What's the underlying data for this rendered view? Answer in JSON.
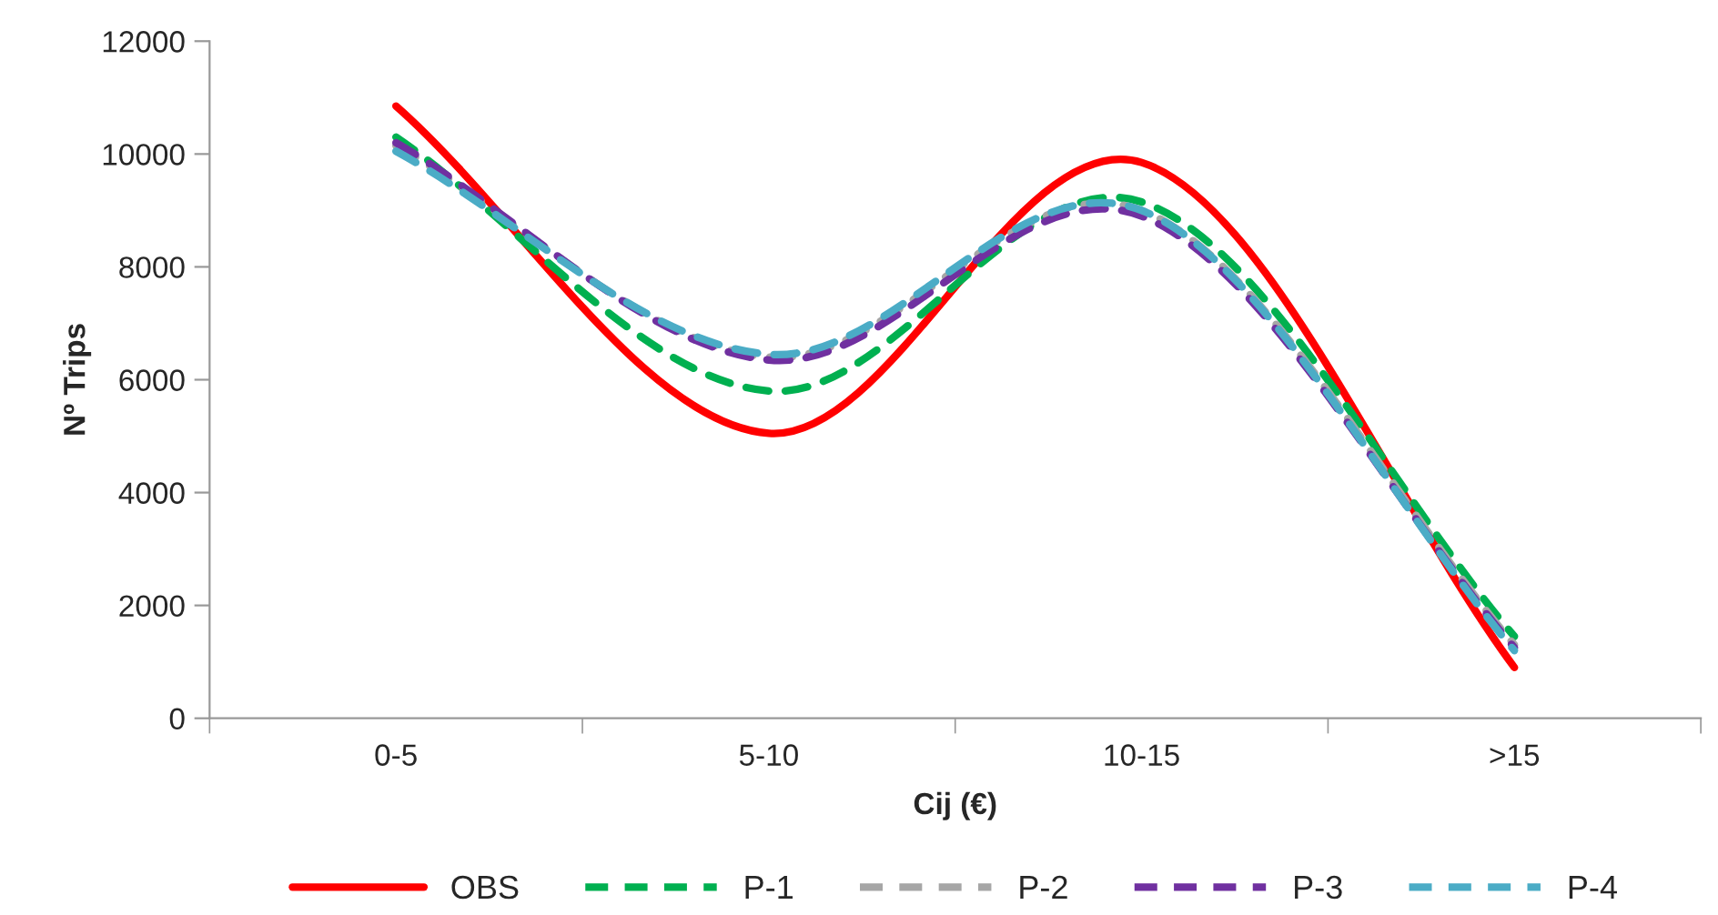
{
  "chart_data": {
    "type": "line",
    "xlabel": "Cij (€)",
    "ylabel": "Nº Trips",
    "categories": [
      "0-5",
      "5-10",
      "10-15",
      ">15"
    ],
    "series": [
      {
        "name": "OBS",
        "color": "#ff0000",
        "line_style": "solid",
        "values": [
          10850,
          5050,
          9850,
          900
        ]
      },
      {
        "name": "P-1",
        "color": "#00b050",
        "line_style": "dashed",
        "values": [
          10300,
          5800,
          9150,
          1450
        ]
      },
      {
        "name": "P-2",
        "color": "#a6a6a6",
        "line_style": "dashed",
        "values": [
          10150,
          6400,
          9000,
          1300
        ]
      },
      {
        "name": "P-3",
        "color": "#7030a0",
        "line_style": "dashed",
        "values": [
          10200,
          6350,
          8900,
          1250
        ]
      },
      {
        "name": "P-4",
        "color": "#4bacc6",
        "line_style": "dashed",
        "values": [
          10050,
          6450,
          9000,
          1200
        ]
      }
    ],
    "ylim": [
      0,
      12000
    ],
    "yticks": [
      0,
      2000,
      4000,
      6000,
      8000,
      10000,
      12000
    ],
    "grid": false,
    "legend": "bottom",
    "marker": "none"
  }
}
